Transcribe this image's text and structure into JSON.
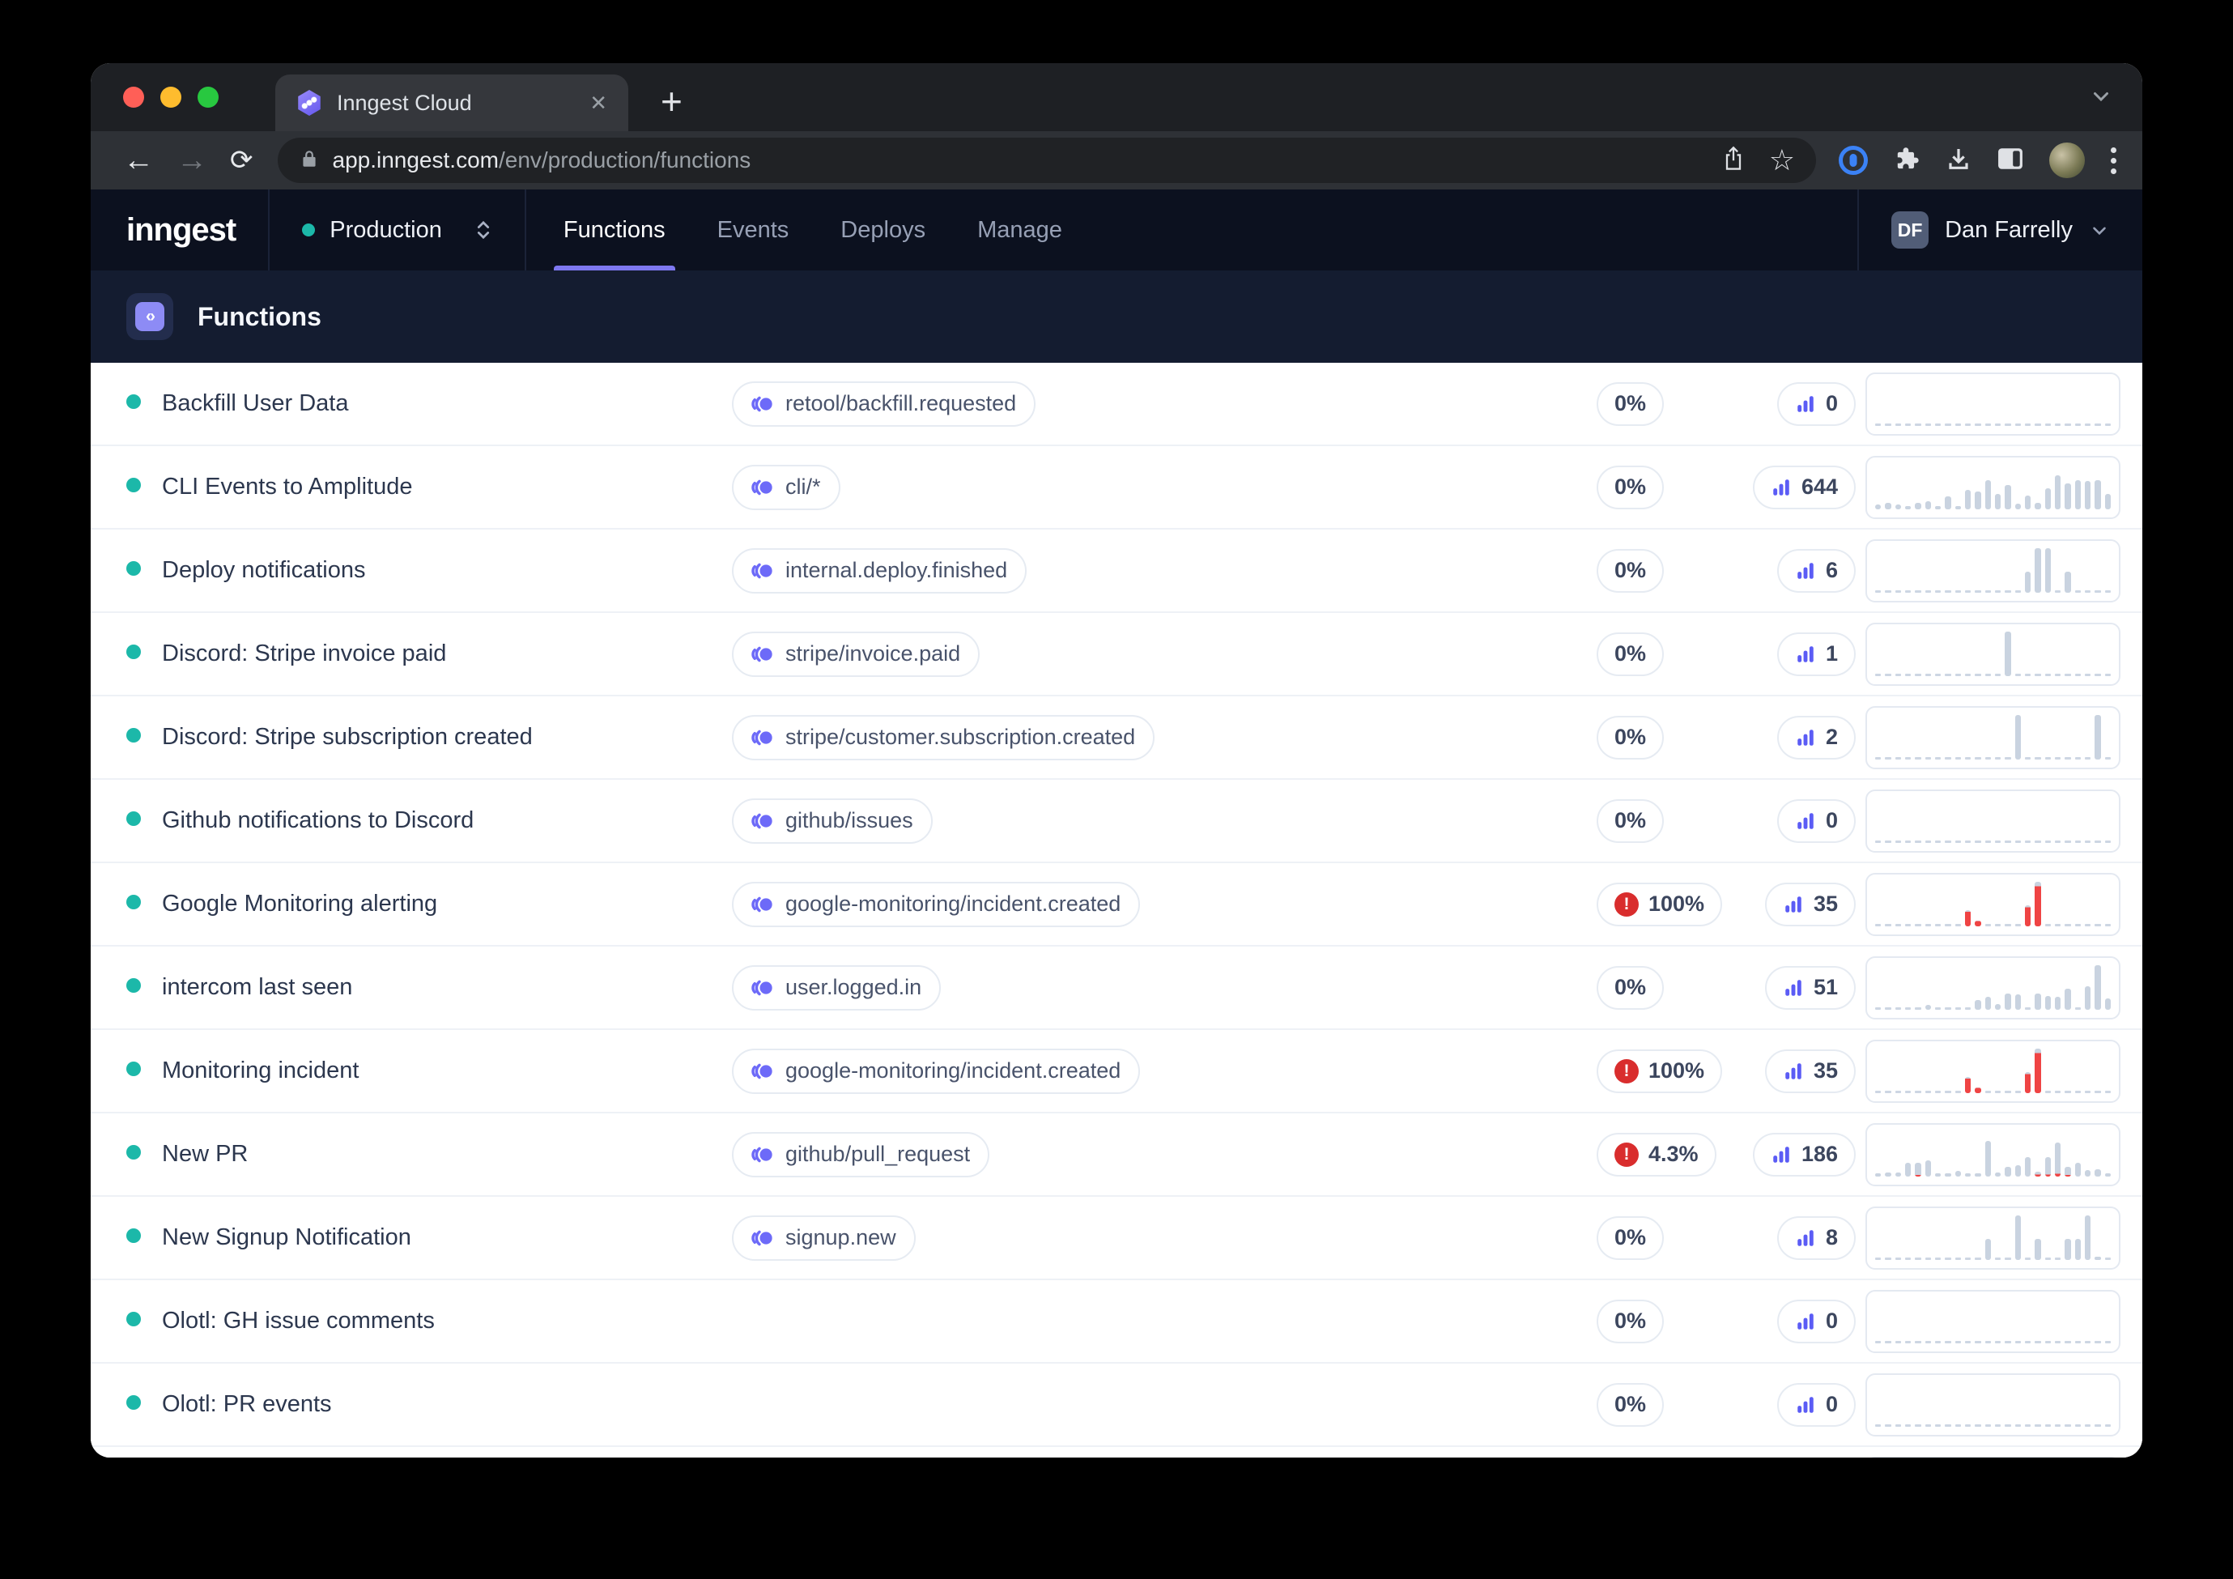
{
  "browser": {
    "tab_title": "Inngest Cloud",
    "close_tab_label": "✕",
    "new_tab_label": "+",
    "url_host": "app.inngest.com",
    "url_path": "/env/production/functions",
    "back_glyph": "←",
    "forward_glyph": "→",
    "reload_glyph": "⟳",
    "star_glyph": "☆"
  },
  "app_header": {
    "logo_text": "inngest",
    "environment": "Production",
    "nav_items": [
      {
        "label": "Functions",
        "active": true
      },
      {
        "label": "Events",
        "active": false
      },
      {
        "label": "Deploys",
        "active": false
      },
      {
        "label": "Manage",
        "active": false
      }
    ],
    "user_initials": "DF",
    "user_name": "Dan Farrelly"
  },
  "page": {
    "title": "Functions",
    "icon_glyph": "‹›"
  },
  "colors": {
    "accent_purple": "#7e78f0",
    "event_icon_purple": "#6d6af8",
    "count_icon_purple": "#5b5cf5",
    "status_teal": "#1cb8a9",
    "error_red": "#d92d2d",
    "chart_bar_gray": "#c9d3e0",
    "chart_bar_red": "#ef4444"
  },
  "functions": [
    {
      "name": "Backfill User Data",
      "event": "retool/backfill.requested",
      "failure_rate": "0%",
      "error": false,
      "count": "0",
      "chart": {
        "h": [
          0,
          0,
          0,
          0,
          0,
          0,
          0,
          0,
          0,
          0,
          0,
          0,
          0,
          0,
          0,
          0,
          0,
          0,
          0,
          0,
          0,
          0,
          0,
          0
        ]
      }
    },
    {
      "name": "CLI Events to Amplitude",
      "event": "cli/*",
      "failure_rate": "0%",
      "error": false,
      "count": "644",
      "chart": {
        "h": [
          10,
          14,
          10,
          7,
          14,
          18,
          5,
          28,
          7,
          42,
          38,
          62,
          33,
          52,
          12,
          30,
          14,
          45,
          72,
          55,
          62,
          60,
          62,
          33
        ]
      }
    },
    {
      "name": "Deploy notifications",
      "event": "internal.deploy.finished",
      "failure_rate": "0%",
      "error": false,
      "count": "6",
      "chart": {
        "h": [
          0,
          0,
          0,
          0,
          0,
          0,
          0,
          0,
          0,
          0,
          0,
          0,
          0,
          0,
          0,
          45,
          95,
          95,
          0,
          45,
          0,
          0,
          0,
          0
        ]
      }
    },
    {
      "name": "Discord: Stripe invoice paid",
      "event": "stripe/invoice.paid",
      "failure_rate": "0%",
      "error": false,
      "count": "1",
      "chart": {
        "h": [
          0,
          0,
          0,
          0,
          0,
          0,
          0,
          0,
          0,
          0,
          0,
          0,
          0,
          95,
          0,
          0,
          0,
          0,
          0,
          0,
          0,
          0,
          0,
          0
        ]
      }
    },
    {
      "name": "Discord: Stripe subscription created",
      "event": "stripe/customer.subscription.created",
      "failure_rate": "0%",
      "error": false,
      "count": "2",
      "chart": {
        "h": [
          0,
          0,
          0,
          0,
          0,
          0,
          0,
          0,
          0,
          0,
          0,
          0,
          0,
          0,
          95,
          0,
          0,
          0,
          0,
          0,
          0,
          0,
          95,
          0
        ]
      }
    },
    {
      "name": "Github notifications to Discord",
      "event": "github/issues",
      "failure_rate": "0%",
      "error": false,
      "count": "0",
      "chart": {
        "h": [
          0,
          0,
          0,
          0,
          0,
          0,
          0,
          0,
          0,
          0,
          0,
          0,
          0,
          0,
          0,
          0,
          0,
          0,
          0,
          0,
          0,
          0,
          0,
          0
        ]
      }
    },
    {
      "name": "Google Monitoring alerting",
      "event": "google-monitoring/incident.created",
      "failure_rate": "100%",
      "error": true,
      "count": "35",
      "chart": {
        "h": [
          0,
          0,
          0,
          0,
          0,
          0,
          0,
          0,
          0,
          35,
          12,
          0,
          0,
          0,
          0,
          45,
          95,
          0,
          0,
          0,
          0,
          0,
          0,
          0
        ],
        "r": [
          0,
          0,
          0,
          0,
          0,
          0,
          0,
          0,
          0,
          90,
          90,
          0,
          0,
          0,
          0,
          90,
          90,
          0,
          0,
          0,
          0,
          0,
          0,
          0
        ]
      }
    },
    {
      "name": "intercom last seen",
      "event": "user.logged.in",
      "failure_rate": "0%",
      "error": false,
      "count": "51",
      "chart": {
        "h": [
          0,
          0,
          0,
          0,
          0,
          10,
          0,
          0,
          0,
          0,
          20,
          28,
          12,
          35,
          32,
          0,
          35,
          30,
          28,
          45,
          0,
          50,
          95,
          25
        ]
      }
    },
    {
      "name": "Monitoring incident",
      "event": "google-monitoring/incident.created",
      "failure_rate": "100%",
      "error": true,
      "count": "35",
      "chart": {
        "h": [
          0,
          0,
          0,
          0,
          0,
          0,
          0,
          0,
          0,
          35,
          12,
          0,
          0,
          0,
          0,
          45,
          95,
          0,
          0,
          0,
          0,
          0,
          0,
          0
        ],
        "r": [
          0,
          0,
          0,
          0,
          0,
          0,
          0,
          0,
          0,
          90,
          90,
          0,
          0,
          0,
          0,
          90,
          90,
          0,
          0,
          0,
          0,
          0,
          0,
          0
        ]
      }
    },
    {
      "name": "New PR",
      "event": "github/pull_request",
      "failure_rate": "4.3%",
      "error": true,
      "count": "186",
      "chart": {
        "h": [
          6,
          8,
          8,
          30,
          30,
          35,
          7,
          7,
          12,
          7,
          7,
          75,
          8,
          20,
          25,
          42,
          10,
          42,
          72,
          20,
          30,
          13,
          16,
          6
        ],
        "r": [
          0,
          0,
          0,
          0,
          12,
          0,
          0,
          0,
          0,
          0,
          0,
          0,
          0,
          0,
          0,
          0,
          40,
          10,
          8,
          15,
          0,
          0,
          0,
          0
        ]
      }
    },
    {
      "name": "New Signup Notification",
      "event": "signup.new",
      "failure_rate": "0%",
      "error": false,
      "count": "8",
      "chart": {
        "h": [
          0,
          0,
          0,
          0,
          0,
          0,
          0,
          0,
          0,
          0,
          0,
          45,
          0,
          0,
          95,
          0,
          45,
          0,
          0,
          45,
          45,
          95,
          7,
          0
        ]
      }
    },
    {
      "name": "Olotl: GH issue comments",
      "event": null,
      "failure_rate": "0%",
      "error": false,
      "count": "0",
      "chart": {
        "h": [
          0,
          0,
          0,
          0,
          0,
          0,
          0,
          0,
          0,
          0,
          0,
          0,
          0,
          0,
          0,
          0,
          0,
          0,
          0,
          0,
          0,
          0,
          0,
          0
        ]
      }
    },
    {
      "name": "Olotl: PR events",
      "event": null,
      "failure_rate": "0%",
      "error": false,
      "count": "0",
      "chart": {
        "h": [
          0,
          0,
          0,
          0,
          0,
          0,
          0,
          0,
          0,
          0,
          0,
          0,
          0,
          0,
          0,
          0,
          0,
          0,
          0,
          0,
          0,
          0,
          0,
          0
        ]
      }
    },
    {
      "name": "",
      "event": null,
      "failure_rate": null,
      "error": false,
      "count": null,
      "partial": true,
      "chart": {
        "h": [
          0,
          0,
          0,
          0,
          0,
          0,
          0,
          0,
          0,
          0,
          0,
          0,
          0,
          0,
          0,
          0,
          0,
          0,
          0,
          0,
          0,
          0,
          0,
          0
        ]
      }
    }
  ]
}
